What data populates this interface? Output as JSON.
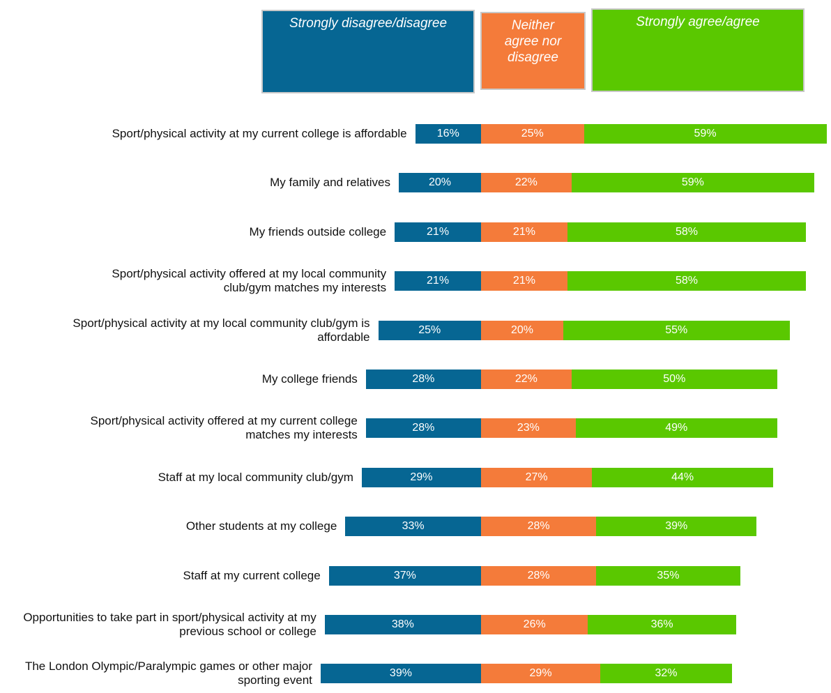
{
  "chart_data": {
    "type": "bar",
    "orientation": "horizontal",
    "stacked": true,
    "categories": [
      "Sport/physical activity at my current college is affordable",
      "My family and relatives",
      "My friends outside college",
      "Sport/physical activity offered at my local community club/gym matches my interests",
      "Sport/physical activity at my local community club/gym is affordable",
      "My college friends",
      "Sport/physical activity offered at my current college matches my interests",
      "Staff at my local community club/gym",
      "Other students at my college",
      "Staff at my current college",
      "Opportunities to take part in sport/physical activity at my previous school or college",
      "The London Olympic/Paralympic games or other major sporting event"
    ],
    "series": [
      {
        "name": "Strongly disagree/disagree",
        "color": "#066693",
        "values": [
          16,
          20,
          21,
          21,
          25,
          28,
          28,
          29,
          33,
          37,
          38,
          39
        ],
        "value_labels": [
          "16%",
          "20%",
          "21%",
          "21%",
          "25%",
          "28%",
          "28%",
          "29%",
          "33%",
          "37%",
          "38%",
          "39%"
        ]
      },
      {
        "name": "Neither agree nor disagree",
        "color": "#f47b3a",
        "values": [
          25,
          22,
          21,
          21,
          20,
          22,
          23,
          27,
          28,
          28,
          26,
          29
        ],
        "value_labels": [
          "25%",
          "22%",
          "21%",
          "21%",
          "20%",
          "22%",
          "23%",
          "27%",
          "28%",
          "28%",
          "26%",
          "29%"
        ]
      },
      {
        "name": "Strongly agree/agree",
        "color": "#5ac800",
        "values": [
          59,
          59,
          58,
          58,
          55,
          50,
          49,
          44,
          39,
          35,
          36,
          32
        ],
        "value_labels": [
          "59%",
          "59%",
          "58%",
          "58%",
          "55%",
          "50%",
          "49%",
          "44%",
          "39%",
          "35%",
          "36%",
          "32%"
        ]
      }
    ],
    "legend": "top"
  }
}
